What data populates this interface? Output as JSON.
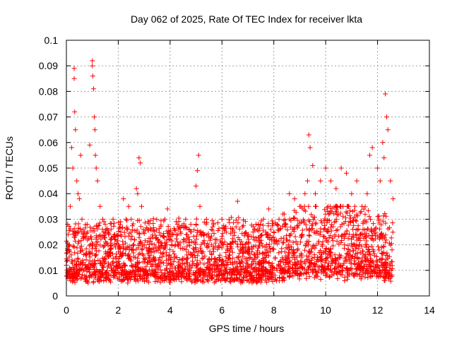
{
  "chart_data": {
    "type": "scatter",
    "title": "Day 062 of 2025, Rate Of TEC Index for receiver lkta",
    "xlabel": "GPS time / hours",
    "ylabel": "ROTI / TECUs",
    "xlim": [
      0,
      14
    ],
    "ylim": [
      0,
      0.1
    ],
    "xticks": [
      0,
      2,
      4,
      6,
      8,
      10,
      12,
      14
    ],
    "xtick_labels": [
      "0",
      "2",
      "4",
      "6",
      "8",
      "10",
      "12",
      "14"
    ],
    "yticks": [
      0,
      0.01,
      0.02,
      0.03,
      0.04,
      0.05,
      0.06,
      0.07,
      0.08,
      0.09,
      0.1
    ],
    "ytick_labels": [
      "0",
      "0.01",
      "0.02",
      "0.03",
      "0.04",
      "0.05",
      "0.06",
      "0.07",
      "0.08",
      "0.09",
      "0.1"
    ],
    "grid": true,
    "marker": "+",
    "color": "#ff0000",
    "series": [
      {
        "name": "ROTI",
        "x": [
          0.0,
          0.1,
          0.15,
          0.2,
          0.25,
          0.3,
          0.3,
          0.32,
          0.35,
          0.4,
          0.45,
          0.5,
          0.55,
          0.6,
          0.7,
          0.8,
          0.9,
          1.0,
          1.0,
          1.02,
          1.05,
          1.08,
          1.1,
          1.12,
          1.15,
          1.2,
          1.3,
          1.4,
          1.5,
          1.6,
          1.7,
          1.8,
          1.9,
          2.0,
          2.1,
          2.2,
          2.3,
          2.4,
          2.5,
          2.6,
          2.7,
          2.75,
          2.8,
          2.85,
          2.9,
          3.0,
          3.2,
          3.4,
          3.6,
          3.8,
          3.9,
          4.0,
          4.2,
          4.4,
          4.6,
          4.8,
          5.0,
          5.05,
          5.1,
          5.15,
          5.2,
          5.4,
          5.6,
          5.8,
          6.0,
          6.2,
          6.4,
          6.6,
          6.8,
          7.0,
          7.2,
          7.4,
          7.6,
          7.8,
          8.0,
          8.2,
          8.4,
          8.6,
          8.8,
          9.0,
          9.2,
          9.3,
          9.35,
          9.4,
          9.5,
          9.6,
          9.8,
          10.0,
          10.2,
          10.4,
          10.6,
          10.8,
          11.0,
          11.2,
          11.4,
          11.6,
          11.7,
          11.8,
          12.0,
          12.1,
          12.2,
          12.25,
          12.3,
          12.35,
          12.4,
          12.5,
          12.6
        ],
        "y": [
          0.012,
          0.02,
          0.035,
          0.058,
          0.05,
          0.089,
          0.085,
          0.072,
          0.065,
          0.045,
          0.04,
          0.038,
          0.055,
          0.03,
          0.025,
          0.028,
          0.059,
          0.092,
          0.09,
          0.086,
          0.081,
          0.07,
          0.065,
          0.055,
          0.05,
          0.045,
          0.035,
          0.03,
          0.028,
          0.025,
          0.022,
          0.03,
          0.022,
          0.02,
          0.025,
          0.038,
          0.03,
          0.035,
          0.03,
          0.02,
          0.042,
          0.04,
          0.054,
          0.052,
          0.035,
          0.02,
          0.018,
          0.02,
          0.015,
          0.03,
          0.034,
          0.025,
          0.02,
          0.025,
          0.03,
          0.028,
          0.043,
          0.049,
          0.055,
          0.035,
          0.025,
          0.03,
          0.02,
          0.022,
          0.03,
          0.02,
          0.025,
          0.037,
          0.02,
          0.018,
          0.025,
          0.028,
          0.03,
          0.034,
          0.025,
          0.03,
          0.032,
          0.04,
          0.038,
          0.035,
          0.04,
          0.045,
          0.063,
          0.058,
          0.051,
          0.04,
          0.045,
          0.05,
          0.045,
          0.042,
          0.05,
          0.048,
          0.04,
          0.045,
          0.035,
          0.04,
          0.055,
          0.058,
          0.05,
          0.045,
          0.06,
          0.054,
          0.079,
          0.07,
          0.065,
          0.045,
          0.038
        ]
      }
    ],
    "background": {
      "description_level": "dense band",
      "band_low": 0.005,
      "band_high": 0.025,
      "x_start": 0.0,
      "x_end": 12.6
    }
  }
}
